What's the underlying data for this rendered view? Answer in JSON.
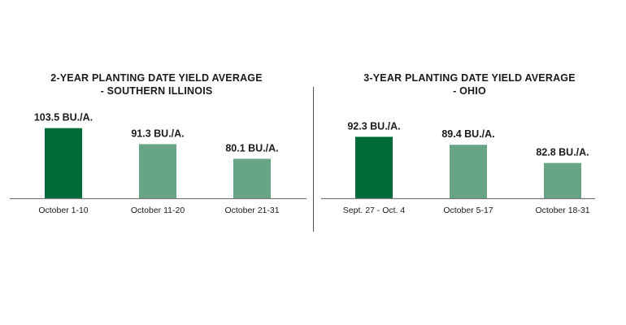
{
  "chart_data": [
    {
      "type": "bar",
      "title_lines": [
        "2-YEAR PLANTING DATE YIELD AVERAGE",
        "- SOUTHERN ILLINOIS"
      ],
      "categories": [
        "October 1-10",
        "October 11-20",
        "October 21-31"
      ],
      "values": [
        103.5,
        91.3,
        80.1
      ],
      "value_labels": [
        "103.5 BU./A.",
        "91.3 BU./A.",
        "80.1 BU./A."
      ],
      "ylim": [
        50,
        112
      ],
      "grid": false,
      "colors": [
        "#006a38",
        "#67a586",
        "#67a586"
      ]
    },
    {
      "type": "bar",
      "title_lines": [
        "3-YEAR PLANTING DATE YIELD AVERAGE",
        "- OHIO"
      ],
      "categories": [
        "Sept. 27 - Oct. 4",
        "October 5-17",
        "October 18-31"
      ],
      "values": [
        92.3,
        89.4,
        82.8
      ],
      "value_labels": [
        "92.3 BU./A.",
        "89.4 BU./A.",
        "82.8 BU./A."
      ],
      "ylim": [
        70,
        99.5
      ],
      "grid": false,
      "colors": [
        "#006a38",
        "#67a586",
        "#67a586"
      ]
    }
  ]
}
